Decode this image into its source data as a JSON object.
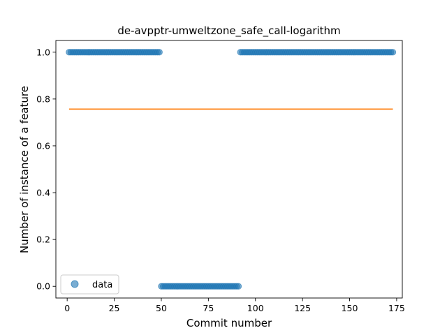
{
  "chart_data": {
    "type": "scatter",
    "title": "de-avpptr-umweltzone_safe_call-logarithm",
    "xlabel": "Commit number",
    "ylabel": "Number of instance of a feature",
    "xlim": [
      -6,
      178
    ],
    "ylim": [
      -0.05,
      1.05
    ],
    "x_ticks": [
      0,
      25,
      50,
      75,
      100,
      125,
      150,
      175
    ],
    "y_ticks": [
      0.0,
      0.2,
      0.4,
      0.6,
      0.8,
      1.0
    ],
    "series": [
      {
        "name": "data",
        "kind": "scatter",
        "color": "#1f77b4",
        "segments": [
          {
            "x_start": 1,
            "x_end": 49,
            "y": 1.0
          },
          {
            "x_start": 50,
            "x_end": 91,
            "y": 0.0
          },
          {
            "x_start": 92,
            "x_end": 173,
            "y": 1.0
          }
        ]
      },
      {
        "kind": "line",
        "color": "#ff7f0e",
        "x": [
          1,
          173
        ],
        "y": [
          0.757,
          0.757
        ]
      }
    ],
    "grid": false,
    "legend_position": "lower-left"
  }
}
